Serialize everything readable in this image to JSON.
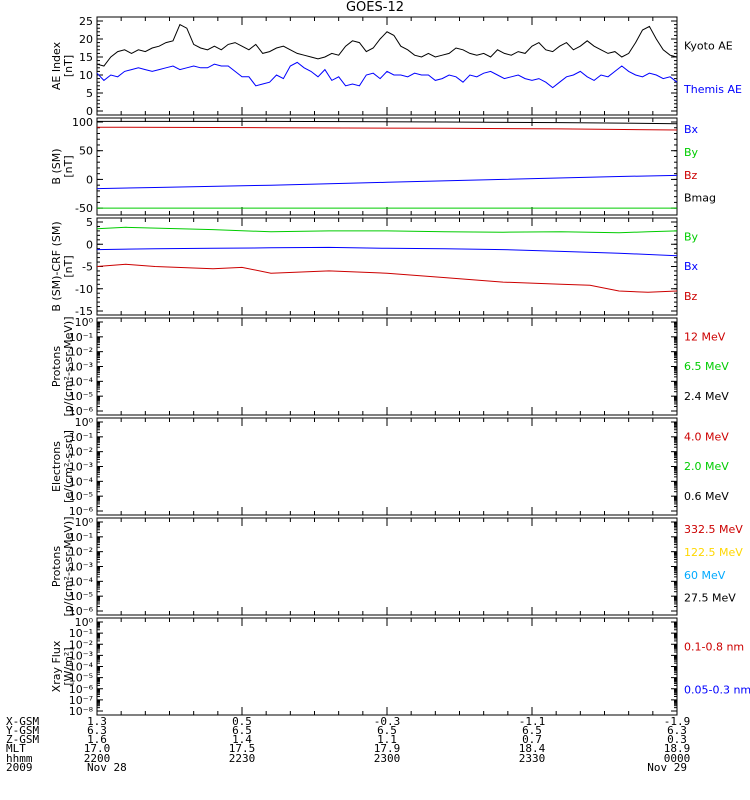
{
  "title": "GOES-12",
  "chart_data": [
    {
      "id": "ae",
      "type": "line",
      "ylabel": "AE Index",
      "yunit": "[nT]",
      "ylim": [
        0,
        25
      ],
      "yticks": [
        "0",
        "5",
        "10",
        "15",
        "20",
        "25"
      ],
      "series": [
        {
          "name": "Kyoto AE",
          "color": "#000000",
          "values": [
            13,
            12.5,
            15,
            16.5,
            17,
            16,
            17,
            16.5,
            17.5,
            18,
            19,
            19.5,
            24,
            23,
            18.5,
            17.5,
            17,
            18,
            17,
            18.5,
            19,
            18,
            17,
            18.5,
            16,
            16.5,
            17.5,
            18,
            17,
            16,
            15.5,
            15,
            14.5,
            15,
            16,
            15.5,
            18,
            19.5,
            19,
            16.5,
            17.5,
            20,
            22,
            21,
            18,
            17,
            15.5,
            15,
            16,
            15,
            15.5,
            16,
            17.5,
            17,
            16,
            15.5,
            16,
            15,
            17,
            16,
            15.5,
            16.5,
            16,
            18,
            19,
            17,
            16.5,
            18,
            19,
            17,
            18,
            19.5,
            18,
            17,
            16,
            16.5,
            15,
            16,
            19,
            22.5,
            23.5,
            20,
            17,
            15.5,
            15
          ]
        },
        {
          "name": "Themis AE",
          "color": "#0000ff",
          "values": [
            10.5,
            8.5,
            10,
            9.5,
            11,
            11.5,
            12,
            11.5,
            11,
            11.5,
            12,
            12.5,
            11.5,
            12,
            12.5,
            12,
            12,
            13,
            12.5,
            12.5,
            11,
            9.5,
            9.5,
            7,
            7.5,
            8,
            10,
            9,
            12.5,
            13.5,
            12,
            11,
            9.5,
            11.5,
            8.5,
            9.5,
            7,
            7.5,
            7,
            10,
            10.5,
            9,
            11,
            10,
            10,
            9.5,
            10.5,
            10,
            10,
            8.5,
            9,
            10,
            9.5,
            8,
            10,
            9.5,
            10.5,
            11,
            10,
            9,
            9.5,
            10,
            9,
            8.5,
            9,
            8,
            6.5,
            8,
            9.5,
            10,
            11,
            9.5,
            8.5,
            10,
            9.5,
            11,
            12.5,
            11,
            10,
            9.5,
            10.5,
            10,
            9,
            9.5,
            8
          ]
        }
      ]
    },
    {
      "id": "bsm",
      "type": "line",
      "ylabel": "B (SM)",
      "yunit": "[nT]",
      "ylim": [
        -55,
        100
      ],
      "yticks": [
        "-50",
        "0",
        "50",
        "100"
      ],
      "series": [
        {
          "name": "Bx",
          "color": "#0000ff",
          "x": [
            0,
            0.1,
            0.3,
            0.5,
            0.7,
            0.9,
            1
          ],
          "values": [
            -16,
            -14,
            -10,
            -5,
            0,
            5,
            7
          ]
        },
        {
          "name": "By",
          "color": "#00cc00",
          "x": [
            0,
            1
          ],
          "values": [
            -50,
            -50
          ]
        },
        {
          "name": "Bz",
          "color": "#cc0000",
          "x": [
            0,
            0.3,
            0.6,
            0.8,
            1
          ],
          "values": [
            91,
            90,
            89,
            88,
            86
          ]
        },
        {
          "name": "Bmag",
          "color": "#000000",
          "x": [
            0,
            0.3,
            0.6,
            0.8,
            1
          ],
          "values": [
            101,
            101,
            100,
            99,
            97
          ]
        }
      ]
    },
    {
      "id": "bdiff",
      "type": "line",
      "ylabel": "B (SM)-CRF (SM)",
      "yunit": "[nT]",
      "ylim": [
        -15,
        5
      ],
      "yticks": [
        "-15",
        "-10",
        "-5",
        "0",
        "5"
      ],
      "series": [
        {
          "name": "By",
          "color": "#00cc00",
          "x": [
            0,
            0.05,
            0.2,
            0.3,
            0.4,
            0.5,
            0.6,
            0.7,
            0.8,
            0.9,
            0.95,
            1
          ],
          "values": [
            3.5,
            3.8,
            3.3,
            2.8,
            3,
            3,
            2.8,
            2.7,
            2.8,
            2.6,
            2.8,
            3
          ]
        },
        {
          "name": "Bx",
          "color": "#0000ff",
          "x": [
            0,
            0.1,
            0.2,
            0.3,
            0.4,
            0.5,
            0.6,
            0.7,
            0.8,
            0.9,
            1
          ],
          "values": [
            -1.2,
            -1,
            -0.9,
            -0.8,
            -0.7,
            -0.9,
            -1,
            -1.2,
            -1.6,
            -2,
            -2.6
          ]
        },
        {
          "name": "Bz",
          "color": "#cc0000",
          "x": [
            0,
            0.05,
            0.1,
            0.2,
            0.25,
            0.3,
            0.4,
            0.5,
            0.6,
            0.7,
            0.8,
            0.85,
            0.9,
            0.95,
            1
          ],
          "values": [
            -5,
            -4.5,
            -5,
            -5.5,
            -5.2,
            -6.5,
            -6,
            -6.5,
            -7.5,
            -8.5,
            -9,
            -9.2,
            -10.5,
            -10.8,
            -10.5
          ]
        }
      ]
    },
    {
      "id": "protons1",
      "type": "line",
      "ylabel": "Protons",
      "yunit": "[p/(cm²-s-sr-MeV)]",
      "ylim": [
        -6,
        0
      ],
      "log": true,
      "yticks": [
        "10⁰",
        "10⁻¹",
        "10⁻²",
        "10⁻³",
        "10⁻⁴",
        "10⁻⁵",
        "10⁻⁶"
      ],
      "legend": [
        {
          "name": "12 MeV",
          "color": "#cc0000"
        },
        {
          "name": "6.5 MeV",
          "color": "#00cc00"
        },
        {
          "name": "2.4 MeV",
          "color": "#000000"
        }
      ]
    },
    {
      "id": "electrons",
      "type": "line",
      "ylabel": "Electrons",
      "yunit": "[e/(cm²-s-sr)]",
      "ylim": [
        -6,
        0
      ],
      "log": true,
      "yticks": [
        "10⁰",
        "10⁻¹",
        "10⁻²",
        "10⁻³",
        "10⁻⁴",
        "10⁻⁵",
        "10⁻⁶"
      ],
      "legend": [
        {
          "name": "4.0 MeV",
          "color": "#cc0000"
        },
        {
          "name": "2.0 MeV",
          "color": "#00cc00"
        },
        {
          "name": "0.6 MeV",
          "color": "#000000"
        }
      ]
    },
    {
      "id": "protons2",
      "type": "line",
      "ylabel": "Protons",
      "yunit": "[p/(cm²-s-sr-MeV)]",
      "ylim": [
        -6,
        0
      ],
      "log": true,
      "yticks": [
        "10⁰",
        "10⁻¹",
        "10⁻²",
        "10⁻³",
        "10⁻⁴",
        "10⁻⁵",
        "10⁻⁶"
      ],
      "legend": [
        {
          "name": "332.5 MeV",
          "color": "#cc0000"
        },
        {
          "name": "122.5 MeV",
          "color": "#ffd700"
        },
        {
          "name": "60 MeV",
          "color": "#00aaff"
        },
        {
          "name": "27.5 MeV",
          "color": "#000000"
        }
      ]
    },
    {
      "id": "xray",
      "type": "line",
      "ylabel": "Xray Flux",
      "yunit": "[W/m²]",
      "ylim": [
        -8,
        0
      ],
      "log": true,
      "yticks": [
        "10⁰",
        "10⁻¹",
        "10⁻²",
        "10⁻³",
        "10⁻⁴",
        "10⁻⁵",
        "10⁻⁶",
        "10⁻⁷",
        "10⁻⁸"
      ],
      "legend": [
        {
          "name": "0.1-0.8 nm",
          "color": "#cc0000"
        },
        {
          "name": "0.05-0.3 nm",
          "color": "#0000ff"
        }
      ]
    }
  ],
  "orbit_table": {
    "labels": [
      "X-GSM",
      "Y-GSM",
      "Z-GSM",
      "MLT",
      "hhmm",
      "2009"
    ],
    "columns": [
      [
        "1.3",
        "6.3",
        "1.6",
        "17.0",
        "2200",
        "Nov 28"
      ],
      [
        "0.5",
        "6.5",
        "1.4",
        "17.5",
        "2230",
        ""
      ],
      [
        "-0.3",
        "6.5",
        "1.1",
        "17.9",
        "2300",
        ""
      ],
      [
        "-1.1",
        "6.5",
        "0.7",
        "18.4",
        "2330",
        ""
      ],
      [
        "-1.9",
        "6.3",
        "0.3",
        "18.9",
        "0000",
        "Nov 29"
      ]
    ]
  }
}
